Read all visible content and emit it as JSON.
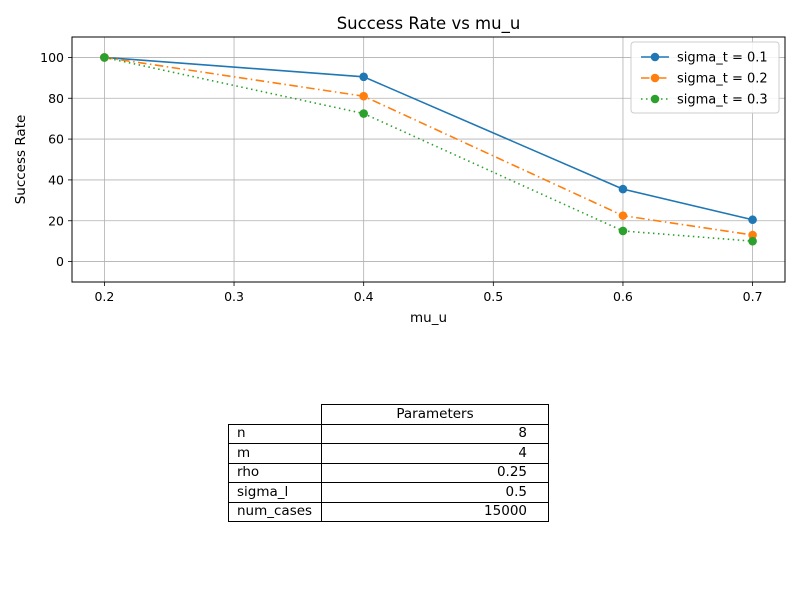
{
  "chart_data": {
    "type": "line",
    "title": "Success Rate vs mu_u",
    "xlabel": "mu_u",
    "ylabel": "Success Rate",
    "x": [
      0.2,
      0.4,
      0.6,
      0.7
    ],
    "xlim": [
      0.175,
      0.725
    ],
    "ylim": [
      -10,
      110
    ],
    "xticks": [
      0.2,
      0.3,
      0.4,
      0.5,
      0.6,
      0.7
    ],
    "xtick_labels": [
      "0.2",
      "0.3",
      "0.4",
      "0.5",
      "0.6",
      "0.7"
    ],
    "yticks": [
      0,
      20,
      40,
      60,
      80,
      100
    ],
    "ytick_labels": [
      "0",
      "20",
      "40",
      "60",
      "80",
      "100"
    ],
    "grid": true,
    "legend_position": "top-right",
    "series": [
      {
        "name": "sigma_t = 0.1",
        "values": [
          100,
          90.5,
          35.5,
          20.5
        ],
        "color": "#1f77b4",
        "line_style": "solid",
        "marker": "circle"
      },
      {
        "name": "sigma_t = 0.2",
        "values": [
          100,
          81,
          22.5,
          13
        ],
        "color": "#ff7f0e",
        "line_style": "dashdot",
        "marker": "circle"
      },
      {
        "name": "sigma_t = 0.3",
        "values": [
          100,
          72.5,
          15,
          10
        ],
        "color": "#2ca02c",
        "line_style": "dotted",
        "marker": "circle"
      }
    ]
  },
  "table": {
    "header": "Parameters",
    "rows": [
      {
        "label": "n",
        "value": "8"
      },
      {
        "label": "m",
        "value": "4"
      },
      {
        "label": "rho",
        "value": "0.25"
      },
      {
        "label": "sigma_l",
        "value": "0.5"
      },
      {
        "label": "num_cases",
        "value": "15000"
      }
    ]
  }
}
